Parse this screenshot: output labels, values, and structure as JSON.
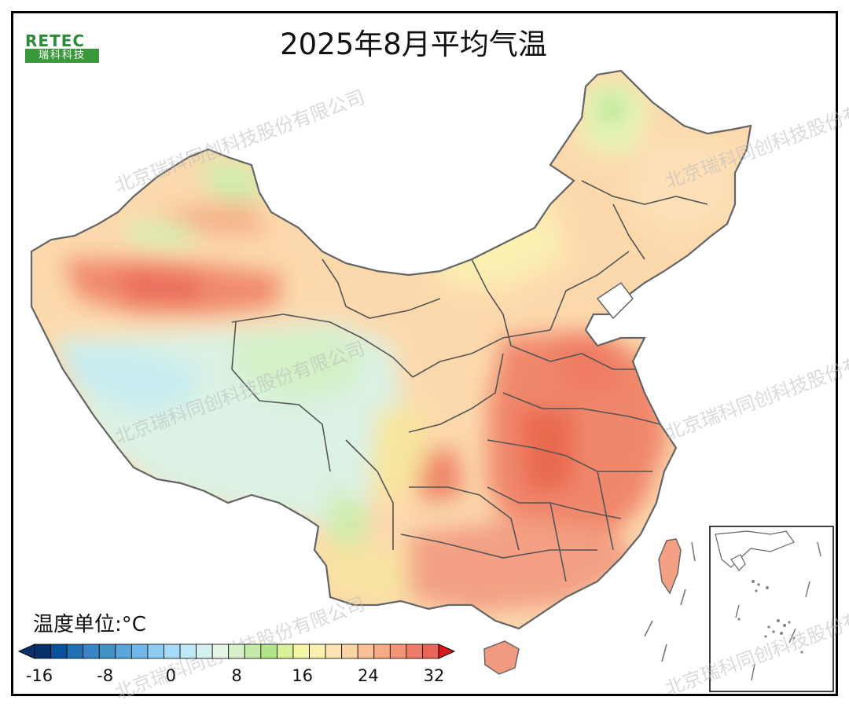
{
  "map": {
    "title": "2025年8月平均气温",
    "logo": {
      "brand": "RETEC",
      "subtitle": "瑞科科技"
    },
    "watermark": "北京瑞科同创科技股份有限公司",
    "legend": {
      "unit_label": "温度单位:°C",
      "ticks": [
        "-16",
        "-8",
        "0",
        "8",
        "16",
        "24",
        "32"
      ],
      "colors": [
        "#08306b",
        "#08519c",
        "#2171b5",
        "#3a85c8",
        "#4292c6",
        "#5aa6dc",
        "#73b8ea",
        "#8ecbf2",
        "#a6dcf7",
        "#bfe8f5",
        "#d4f0ef",
        "#e6f5e6",
        "#d8f0c8",
        "#c5eba8",
        "#b2e48a",
        "#d9ef9a",
        "#f5f5a6",
        "#fbf0b0",
        "#fde3b2",
        "#fcd3a5",
        "#fbc096",
        "#f7ab86",
        "#f39477",
        "#ee7c68",
        "#e8655a"
      ],
      "min_arrow_color": "#08306b",
      "max_arrow_color": "#d7191c"
    },
    "temperature_scale": {
      "min": -16,
      "max": 32
    }
  }
}
